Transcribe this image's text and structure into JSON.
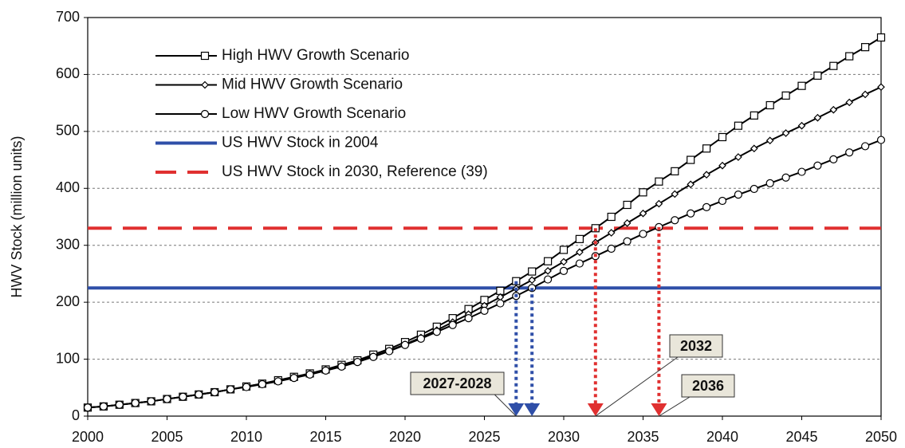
{
  "chart_data": {
    "type": "line",
    "ylabel": "HWV Stock (million units)",
    "x": [
      2000,
      2001,
      2002,
      2003,
      2004,
      2005,
      2006,
      2007,
      2008,
      2009,
      2010,
      2011,
      2012,
      2013,
      2014,
      2015,
      2016,
      2017,
      2018,
      2019,
      2020,
      2021,
      2022,
      2023,
      2024,
      2025,
      2026,
      2027,
      2028,
      2029,
      2030,
      2031,
      2032,
      2033,
      2034,
      2035,
      2036,
      2037,
      2038,
      2039,
      2040,
      2041,
      2042,
      2043,
      2044,
      2045,
      2046,
      2047,
      2048,
      2049,
      2050
    ],
    "series": [
      {
        "name": "High HWV Growth Scenario",
        "color": "#000000",
        "marker": "square",
        "values": [
          15,
          17,
          20,
          23,
          26,
          30,
          34,
          38,
          42,
          47,
          52,
          57,
          63,
          69,
          75,
          82,
          90,
          98,
          108,
          118,
          130,
          143,
          157,
          172,
          188,
          204,
          220,
          237,
          254,
          272,
          292,
          311,
          330,
          350,
          371,
          393,
          412,
          430,
          450,
          470,
          490,
          510,
          528,
          546,
          563,
          580,
          598,
          615,
          632,
          648,
          665
        ]
      },
      {
        "name": "Mid HWV Growth Scenario",
        "color": "#000000",
        "marker": "diamond",
        "values": [
          15,
          17,
          20,
          23,
          26,
          30,
          34,
          38,
          42,
          47,
          52,
          57,
          62,
          68,
          74,
          81,
          88,
          96,
          105,
          115,
          126,
          138,
          151,
          165,
          179,
          194,
          209,
          224,
          239,
          255,
          271,
          288,
          305,
          322,
          339,
          356,
          373,
          390,
          407,
          424,
          440,
          455,
          470,
          484,
          497,
          510,
          524,
          538,
          551,
          565,
          578
        ]
      },
      {
        "name": "Low HWV Growth Scenario",
        "color": "#000000",
        "marker": "circle",
        "values": [
          15,
          17,
          20,
          23,
          26,
          30,
          34,
          38,
          42,
          47,
          51,
          56,
          61,
          67,
          73,
          80,
          87,
          95,
          104,
          114,
          125,
          136,
          148,
          160,
          172,
          185,
          198,
          211,
          225,
          240,
          255,
          268,
          281,
          294,
          307,
          320,
          332,
          344,
          356,
          367,
          378,
          389,
          399,
          409,
          419,
          429,
          440,
          451,
          463,
          474,
          485
        ]
      }
    ],
    "reference_lines": [
      {
        "name": "US HWV Stock in 2004",
        "color": "#2f4fa8",
        "value": 225,
        "style": "solid"
      },
      {
        "name": "US HWV Stock in 2030, Reference (39)",
        "color": "#e03030",
        "value": 330,
        "style": "dashed"
      }
    ],
    "drop_lines": [
      {
        "x": 2027,
        "y": 237,
        "color": "#2f4fa8"
      },
      {
        "x": 2028,
        "y": 225,
        "color": "#2f4fa8"
      },
      {
        "x": 2032,
        "y": 330,
        "color": "#e03030"
      },
      {
        "x": 2036,
        "y": 332,
        "color": "#e03030"
      }
    ],
    "annotations": [
      {
        "label": "2027-2028",
        "x": 2027
      },
      {
        "label": "2032",
        "x": 2032
      },
      {
        "label": "2036",
        "x": 2036
      }
    ],
    "xlim": [
      2000,
      2050
    ],
    "xticks": [
      2000,
      2005,
      2010,
      2015,
      2020,
      2025,
      2030,
      2035,
      2040,
      2045,
      2050
    ],
    "ylim": [
      0,
      700
    ],
    "yticks": [
      0,
      100,
      200,
      300,
      400,
      500,
      600,
      700
    ],
    "grid": true,
    "legend": "upper-left"
  }
}
